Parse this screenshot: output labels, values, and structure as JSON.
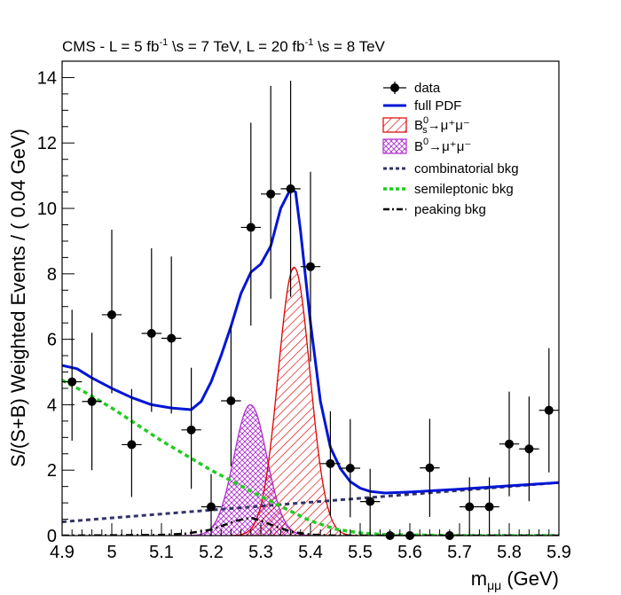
{
  "chart_data": {
    "type": "scatter",
    "title": "CMS - L = 5 fb⁻¹ √s = 7 TeV, L = 20 fb⁻¹ √s = 8 TeV",
    "xlabel": "m_μμ (GeV)",
    "ylabel": "S/(S+B) Weighted Events / ( 0.04 GeV)",
    "xlim": [
      4.9,
      5.9
    ],
    "ylim": [
      0,
      14.5
    ],
    "x_ticks": [
      4.9,
      5,
      5.1,
      5.2,
      5.3,
      5.4,
      5.5,
      5.6,
      5.7,
      5.8,
      5.9
    ],
    "x_tick_labels": [
      "4.9",
      "5",
      "5.1",
      "5.2",
      "5.3",
      "5.4",
      "5.5",
      "5.6",
      "5.7",
      "5.8",
      "5.9"
    ],
    "y_ticks": [
      0,
      2,
      4,
      6,
      8,
      10,
      12,
      14
    ],
    "y_tick_labels": [
      "0",
      "2",
      "4",
      "6",
      "8",
      "10",
      "12",
      "14"
    ],
    "data": {
      "name": "data",
      "x": [
        4.92,
        4.96,
        5.0,
        5.04,
        5.08,
        5.12,
        5.16,
        5.2,
        5.24,
        5.28,
        5.32,
        5.36,
        5.4,
        5.44,
        5.48,
        5.52,
        5.56,
        5.6,
        5.64,
        5.68,
        5.72,
        5.76,
        5.8,
        5.84,
        5.88
      ],
      "y": [
        4.7,
        4.1,
        6.75,
        2.78,
        6.18,
        6.03,
        3.23,
        0.88,
        4.12,
        9.42,
        10.44,
        10.6,
        8.22,
        2.2,
        2.06,
        1.04,
        0.0,
        0.0,
        2.07,
        0.0,
        0.88,
        0.88,
        2.8,
        2.65,
        3.83
      ],
      "err_low": [
        1.8,
        2.1,
        2.4,
        1.6,
        2.4,
        2.3,
        1.8,
        0.9,
        2.0,
        3.0,
        3.2,
        3.3,
        2.9,
        1.6,
        1.5,
        1.0,
        0.0,
        0.0,
        1.5,
        0.0,
        0.9,
        0.9,
        1.6,
        1.6,
        1.9
      ],
      "err_high": [
        2.2,
        2.1,
        2.6,
        1.7,
        2.6,
        2.5,
        1.9,
        1.0,
        2.3,
        3.2,
        3.3,
        3.3,
        2.9,
        1.6,
        1.5,
        1.0,
        0.0,
        0.0,
        1.5,
        0.0,
        0.9,
        0.9,
        1.6,
        1.6,
        1.9
      ],
      "x_halfwidth": 0.02
    },
    "series": [
      {
        "name": "full PDF",
        "color": "#0015d6",
        "x": [
          4.9,
          4.93,
          4.96,
          5.0,
          5.04,
          5.08,
          5.12,
          5.16,
          5.18,
          5.2,
          5.22,
          5.24,
          5.26,
          5.28,
          5.3,
          5.32,
          5.34,
          5.36,
          5.37,
          5.38,
          5.4,
          5.42,
          5.44,
          5.46,
          5.48,
          5.5,
          5.52,
          5.55,
          5.6,
          5.7,
          5.8,
          5.9
        ],
        "y": [
          5.2,
          5.1,
          4.82,
          4.5,
          4.22,
          4.0,
          3.9,
          3.85,
          4.1,
          4.7,
          5.5,
          6.4,
          7.4,
          8.05,
          8.3,
          8.85,
          10.0,
          10.6,
          10.5,
          9.3,
          6.5,
          4.1,
          2.7,
          2.05,
          1.65,
          1.45,
          1.35,
          1.3,
          1.33,
          1.42,
          1.52,
          1.62
        ]
      },
      {
        "name": "combinatorial bkg",
        "color": "#333366",
        "x": [
          4.9,
          5.9
        ],
        "y": [
          0.42,
          1.62
        ]
      },
      {
        "name": "semileptonic bkg",
        "color": "#22cc22",
        "x": [
          4.9,
          4.95,
          5.0,
          5.05,
          5.1,
          5.15,
          5.2,
          5.25,
          5.3,
          5.35,
          5.4,
          5.45,
          5.5,
          5.55,
          5.6,
          5.7,
          5.9
        ],
        "y": [
          4.75,
          4.35,
          3.9,
          3.4,
          2.9,
          2.45,
          2.0,
          1.6,
          1.2,
          0.82,
          0.45,
          0.2,
          0.08,
          0.03,
          0.02,
          0.0,
          0.0
        ]
      },
      {
        "name": "peaking bkg",
        "color": "#000000",
        "x": [
          4.9,
          5.1,
          5.15,
          5.2,
          5.25,
          5.28,
          5.3,
          5.33,
          5.36,
          5.4,
          5.45,
          5.9
        ],
        "y": [
          0.0,
          0.02,
          0.06,
          0.18,
          0.45,
          0.55,
          0.45,
          0.28,
          0.12,
          0.03,
          0.0,
          0.0
        ]
      }
    ],
    "peaks": [
      {
        "name": "Bs0→μ+μ-",
        "center": 5.367,
        "sigma": 0.032,
        "amplitude": 8.2,
        "color": "#dd0000",
        "hatch": "diagonal"
      },
      {
        "name": "B0→μ+μ-",
        "center": 5.279,
        "sigma": 0.033,
        "amplitude": 4.0,
        "color": "#b030d0",
        "hatch": "cross"
      }
    ]
  },
  "legend": {
    "data": "data",
    "full_pdf": "full PDF",
    "bs_main": "B",
    "bs_sub": "s",
    "bs_sup": "0",
    "bs_decay": "→μ⁺μ⁻",
    "b0_main": "B",
    "b0_sup": "0",
    "b0_decay": "→μ⁺μ⁻",
    "combinatorial": "combinatorial bkg",
    "semileptonic": "semileptonic bkg",
    "peaking": "peaking bkg"
  },
  "labels": {
    "title_a": "CMS - L = 5 fb",
    "title_sup1": "-1",
    "title_b": " \\s = 7 TeV, L = 20 fb",
    "title_sup2": "-1",
    "title_c": " \\s = 8 TeV",
    "ylabel": "S/(S+B) Weighted Events / ( 0.04 GeV)",
    "xlabel_m": "m",
    "xlabel_sub": "μμ",
    "xlabel_unit": " (GeV)"
  }
}
